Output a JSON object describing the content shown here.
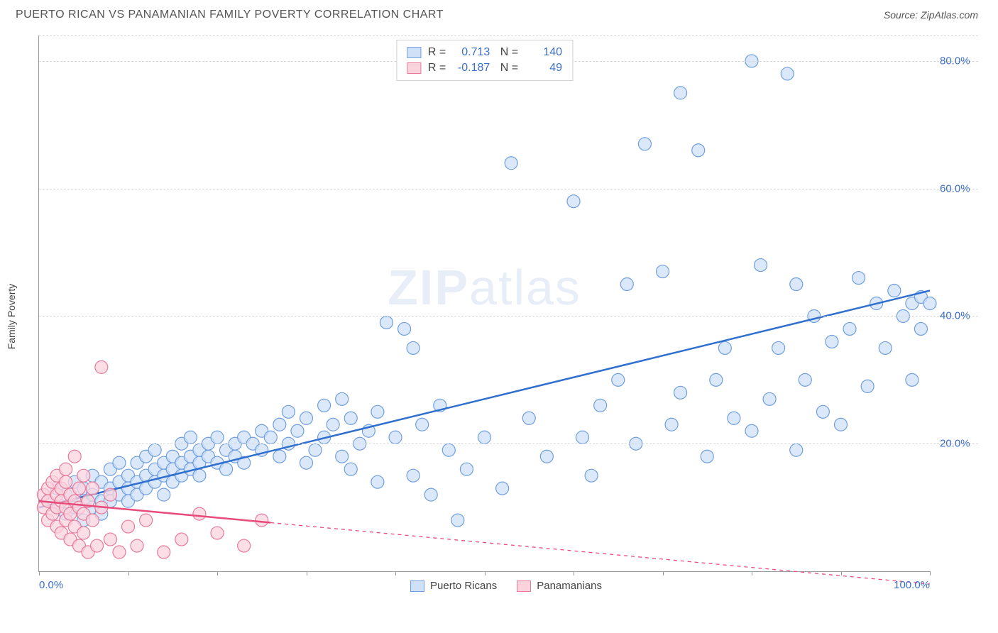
{
  "header": {
    "title": "PUERTO RICAN VS PANAMANIAN FAMILY POVERTY CORRELATION CHART",
    "source_prefix": "Source: ",
    "source_name": "ZipAtlas.com"
  },
  "watermark": {
    "left": "ZIP",
    "right": "atlas"
  },
  "chart": {
    "type": "scatter",
    "y_axis_label": "Family Poverty",
    "xlim": [
      0,
      100
    ],
    "ylim": [
      0,
      84
    ],
    "x_ticks": [
      0,
      10,
      20,
      30,
      40,
      50,
      60,
      70,
      80,
      90,
      100
    ],
    "x_tick_labels": {
      "0": "0.0%",
      "100": "100.0%"
    },
    "y_ticks": [
      20,
      40,
      60,
      80
    ],
    "y_tick_labels": {
      "20": "20.0%",
      "40": "40.0%",
      "60": "60.0%",
      "80": "80.0%"
    },
    "grid_color": "#d8d8d8",
    "axis_color": "#999999",
    "marker_radius": 9,
    "marker_stroke_width": 1.2,
    "line_width_solid": 2.5,
    "line_width_dash": 1.3,
    "series": [
      {
        "key": "puerto_ricans",
        "label": "Puerto Ricans",
        "fill": "#cfe0f7",
        "stroke": "#6f9fe0",
        "line_color": "#2f6fd0",
        "R": "0.713",
        "N": "140",
        "regression": {
          "x1": 0,
          "y1": 10,
          "x2": 100,
          "y2": 44,
          "extrapolate_from_x": null
        },
        "points": [
          [
            1,
            11
          ],
          [
            2,
            10
          ],
          [
            2,
            13
          ],
          [
            3,
            9
          ],
          [
            3,
            12
          ],
          [
            4,
            10
          ],
          [
            4,
            14
          ],
          [
            5,
            11
          ],
          [
            5,
            13
          ],
          [
            5,
            8
          ],
          [
            6,
            12
          ],
          [
            6,
            15
          ],
          [
            6,
            10
          ],
          [
            7,
            11
          ],
          [
            7,
            14
          ],
          [
            7,
            9
          ],
          [
            8,
            13
          ],
          [
            8,
            16
          ],
          [
            8,
            11
          ],
          [
            9,
            14
          ],
          [
            9,
            12
          ],
          [
            9,
            17
          ],
          [
            10,
            15
          ],
          [
            10,
            13
          ],
          [
            10,
            11
          ],
          [
            11,
            14
          ],
          [
            11,
            17
          ],
          [
            11,
            12
          ],
          [
            12,
            15
          ],
          [
            12,
            18
          ],
          [
            12,
            13
          ],
          [
            13,
            16
          ],
          [
            13,
            14
          ],
          [
            13,
            19
          ],
          [
            14,
            17
          ],
          [
            14,
            15
          ],
          [
            14,
            12
          ],
          [
            15,
            18
          ],
          [
            15,
            16
          ],
          [
            15,
            14
          ],
          [
            16,
            17
          ],
          [
            16,
            20
          ],
          [
            16,
            15
          ],
          [
            17,
            18
          ],
          [
            17,
            16
          ],
          [
            17,
            21
          ],
          [
            18,
            19
          ],
          [
            18,
            17
          ],
          [
            18,
            15
          ],
          [
            19,
            20
          ],
          [
            19,
            18
          ],
          [
            20,
            17
          ],
          [
            20,
            21
          ],
          [
            21,
            19
          ],
          [
            21,
            16
          ],
          [
            22,
            20
          ],
          [
            22,
            18
          ],
          [
            23,
            21
          ],
          [
            23,
            17
          ],
          [
            24,
            20
          ],
          [
            25,
            22
          ],
          [
            25,
            19
          ],
          [
            26,
            21
          ],
          [
            27,
            23
          ],
          [
            27,
            18
          ],
          [
            28,
            20
          ],
          [
            28,
            25
          ],
          [
            29,
            22
          ],
          [
            30,
            17
          ],
          [
            30,
            24
          ],
          [
            31,
            19
          ],
          [
            32,
            26
          ],
          [
            32,
            21
          ],
          [
            33,
            23
          ],
          [
            34,
            18
          ],
          [
            34,
            27
          ],
          [
            35,
            16
          ],
          [
            35,
            24
          ],
          [
            36,
            20
          ],
          [
            37,
            22
          ],
          [
            38,
            14
          ],
          [
            38,
            25
          ],
          [
            39,
            39
          ],
          [
            40,
            21
          ],
          [
            41,
            38
          ],
          [
            42,
            15
          ],
          [
            42,
            35
          ],
          [
            43,
            23
          ],
          [
            44,
            12
          ],
          [
            45,
            26
          ],
          [
            46,
            19
          ],
          [
            47,
            8
          ],
          [
            48,
            16
          ],
          [
            50,
            21
          ],
          [
            52,
            13
          ],
          [
            53,
            64
          ],
          [
            55,
            24
          ],
          [
            57,
            18
          ],
          [
            60,
            58
          ],
          [
            61,
            21
          ],
          [
            62,
            15
          ],
          [
            63,
            26
          ],
          [
            65,
            30
          ],
          [
            66,
            45
          ],
          [
            67,
            20
          ],
          [
            68,
            67
          ],
          [
            70,
            47
          ],
          [
            71,
            23
          ],
          [
            72,
            75
          ],
          [
            72,
            28
          ],
          [
            74,
            66
          ],
          [
            75,
            18
          ],
          [
            76,
            30
          ],
          [
            77,
            35
          ],
          [
            78,
            24
          ],
          [
            80,
            80
          ],
          [
            80,
            22
          ],
          [
            81,
            48
          ],
          [
            82,
            27
          ],
          [
            83,
            35
          ],
          [
            84,
            78
          ],
          [
            85,
            19
          ],
          [
            85,
            45
          ],
          [
            86,
            30
          ],
          [
            87,
            40
          ],
          [
            88,
            25
          ],
          [
            89,
            36
          ],
          [
            90,
            23
          ],
          [
            91,
            38
          ],
          [
            92,
            46
          ],
          [
            93,
            29
          ],
          [
            94,
            42
          ],
          [
            95,
            35
          ],
          [
            96,
            44
          ],
          [
            97,
            40
          ],
          [
            98,
            42
          ],
          [
            98,
            30
          ],
          [
            99,
            43
          ],
          [
            99,
            38
          ],
          [
            100,
            42
          ]
        ]
      },
      {
        "key": "panamanians",
        "label": "Panamanians",
        "fill": "#fbd3dd",
        "stroke": "#e77a9a",
        "line_color": "#e84a7a",
        "R": "-0.187",
        "N": "49",
        "regression": {
          "x1": 0,
          "y1": 11,
          "x2": 100,
          "y2": -2,
          "extrapolate_from_x": 26
        },
        "points": [
          [
            0.5,
            10
          ],
          [
            0.5,
            12
          ],
          [
            1,
            8
          ],
          [
            1,
            11
          ],
          [
            1,
            13
          ],
          [
            1.5,
            9
          ],
          [
            1.5,
            14
          ],
          [
            2,
            7
          ],
          [
            2,
            10
          ],
          [
            2,
            12
          ],
          [
            2,
            15
          ],
          [
            2.5,
            6
          ],
          [
            2.5,
            11
          ],
          [
            2.5,
            13
          ],
          [
            3,
            8
          ],
          [
            3,
            10
          ],
          [
            3,
            14
          ],
          [
            3,
            16
          ],
          [
            3.5,
            5
          ],
          [
            3.5,
            9
          ],
          [
            3.5,
            12
          ],
          [
            4,
            7
          ],
          [
            4,
            11
          ],
          [
            4,
            18
          ],
          [
            4.5,
            4
          ],
          [
            4.5,
            10
          ],
          [
            4.5,
            13
          ],
          [
            5,
            6
          ],
          [
            5,
            9
          ],
          [
            5,
            15
          ],
          [
            5.5,
            3
          ],
          [
            5.5,
            11
          ],
          [
            6,
            8
          ],
          [
            6,
            13
          ],
          [
            6.5,
            4
          ],
          [
            7,
            32
          ],
          [
            7,
            10
          ],
          [
            8,
            5
          ],
          [
            8,
            12
          ],
          [
            9,
            3
          ],
          [
            10,
            7
          ],
          [
            11,
            4
          ],
          [
            12,
            8
          ],
          [
            14,
            3
          ],
          [
            16,
            5
          ],
          [
            18,
            9
          ],
          [
            20,
            6
          ],
          [
            23,
            4
          ],
          [
            25,
            8
          ]
        ]
      }
    ]
  },
  "legend_bottom": {
    "items": [
      {
        "label": "Puerto Ricans",
        "fill": "#cfe0f7",
        "stroke": "#6f9fe0"
      },
      {
        "label": "Panamanians",
        "fill": "#fbd3dd",
        "stroke": "#e77a9a"
      }
    ]
  }
}
